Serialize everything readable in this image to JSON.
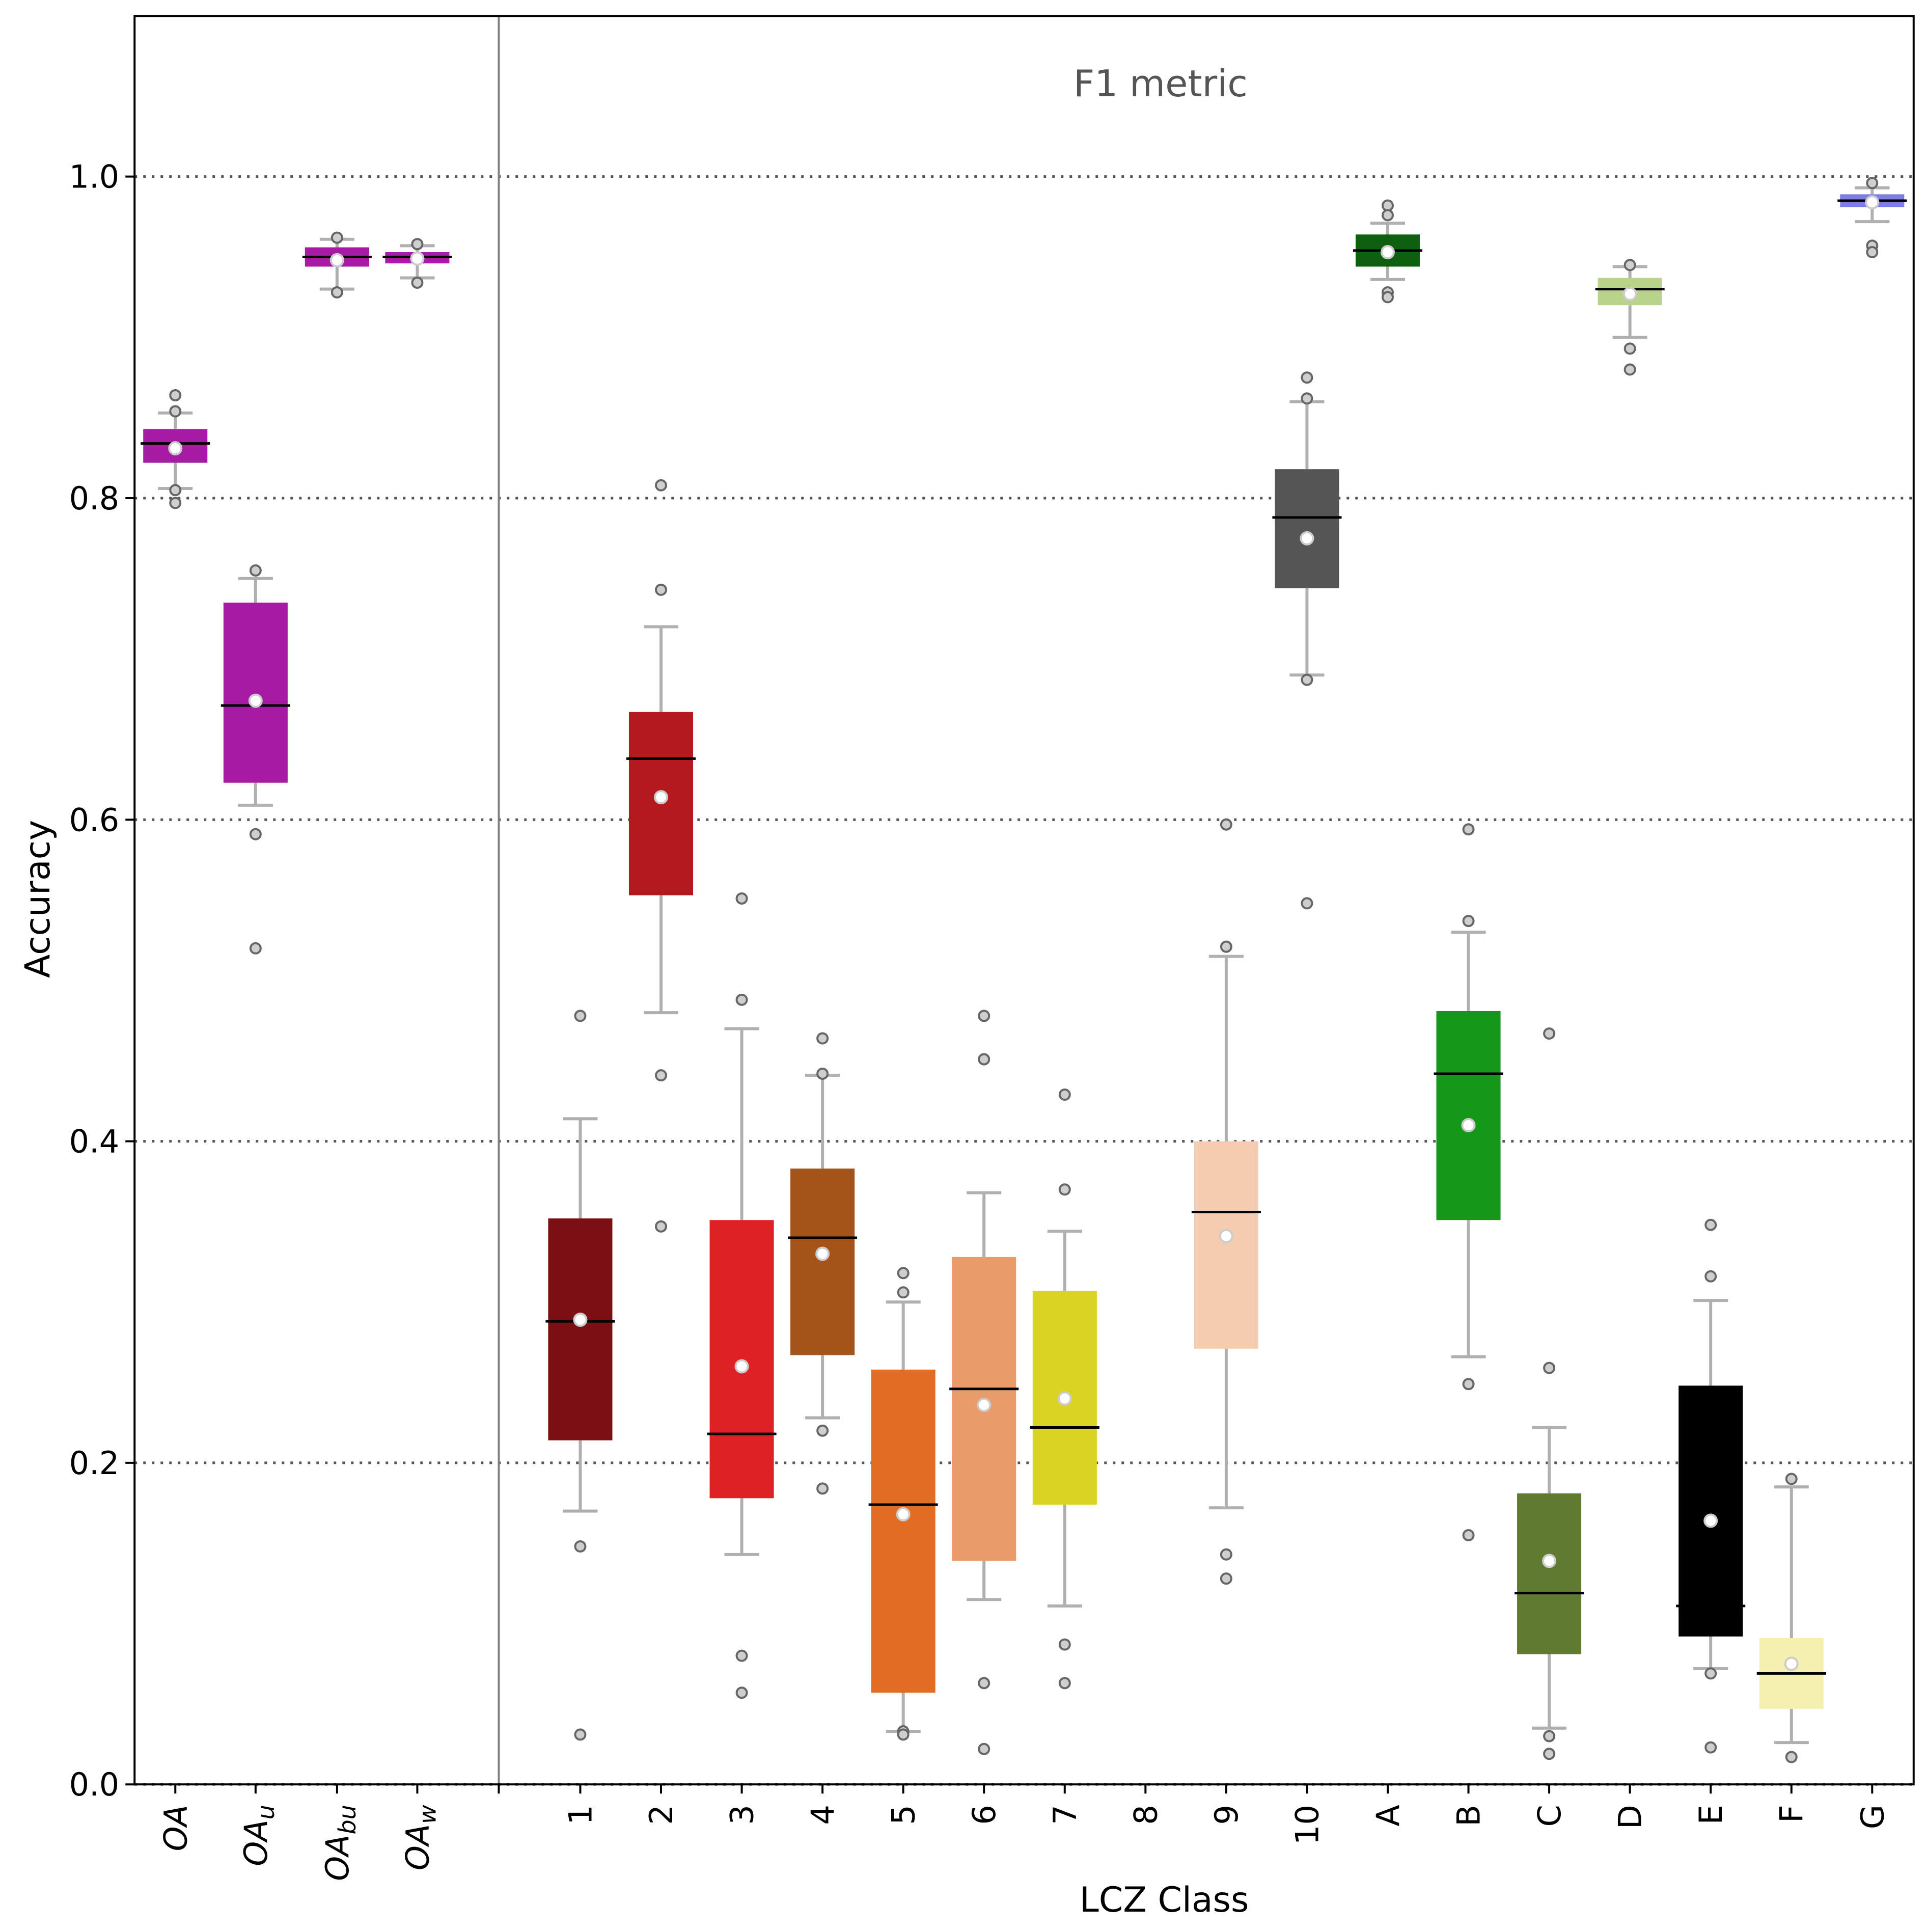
{
  "chart_data": {
    "type": "box",
    "title": "F1 metric",
    "xlabel": "LCZ Class",
    "ylabel": "Accuracy",
    "ylim": [
      0.0,
      1.1
    ],
    "yticks": [
      "0.0",
      "0.2",
      "0.4",
      "0.6",
      "0.8",
      "1.0"
    ],
    "ytick_values": [
      0.0,
      0.2,
      0.4,
      0.6,
      0.8,
      1.0
    ],
    "grid": "horizontal dotted",
    "left_group": [
      {
        "label": "OA",
        "base": "OA",
        "sub": "",
        "color": "#a61aa6",
        "q1": 0.822,
        "median": 0.834,
        "q3": 0.843,
        "whislo": 0.806,
        "whishi": 0.853,
        "mean": 0.831,
        "fliers": [
          0.864,
          0.854,
          0.805,
          0.797
        ]
      },
      {
        "label": "OA_u",
        "base": "OA",
        "sub": "u",
        "color": "#a61aa6",
        "q1": 0.623,
        "median": 0.671,
        "q3": 0.735,
        "whislo": 0.609,
        "whishi": 0.75,
        "mean": 0.674,
        "fliers": [
          0.755,
          0.591,
          0.52
        ]
      },
      {
        "label": "OA_bu",
        "base": "OA",
        "sub": "bu",
        "color": "#a61aa6",
        "q1": 0.944,
        "median": 0.95,
        "q3": 0.956,
        "whislo": 0.93,
        "whishi": 0.961,
        "mean": 0.948,
        "fliers": [
          0.962,
          0.928
        ]
      },
      {
        "label": "OA_w",
        "base": "OA",
        "sub": "w",
        "color": "#a61aa6",
        "q1": 0.946,
        "median": 0.95,
        "q3": 0.953,
        "whislo": 0.937,
        "whishi": 0.957,
        "mean": 0.949,
        "fliers": [
          0.958,
          0.934
        ]
      }
    ],
    "right_group": [
      {
        "label": "1",
        "color": "#7b1013",
        "q1": 0.214,
        "median": 0.288,
        "q3": 0.352,
        "whislo": 0.17,
        "whishi": 0.414,
        "mean": 0.289,
        "fliers": [
          0.478,
          0.148,
          0.031
        ]
      },
      {
        "label": "2",
        "color": "#b4191d",
        "q1": 0.553,
        "median": 0.638,
        "q3": 0.667,
        "whislo": 0.48,
        "whishi": 0.72,
        "mean": 0.614,
        "fliers": [
          0.808,
          0.743,
          0.441,
          0.347
        ]
      },
      {
        "label": "3",
        "color": "#de2124",
        "q1": 0.178,
        "median": 0.218,
        "q3": 0.351,
        "whislo": 0.143,
        "whishi": 0.47,
        "mean": 0.26,
        "fliers": [
          0.551,
          0.488,
          0.08,
          0.057
        ]
      },
      {
        "label": "4",
        "color": "#a5521b",
        "q1": 0.267,
        "median": 0.34,
        "q3": 0.383,
        "whislo": 0.228,
        "whishi": 0.441,
        "mean": 0.33,
        "fliers": [
          0.464,
          0.442,
          0.22,
          0.184
        ]
      },
      {
        "label": "5",
        "color": "#e06d22",
        "q1": 0.057,
        "median": 0.174,
        "q3": 0.258,
        "whislo": 0.033,
        "whishi": 0.3,
        "mean": 0.168,
        "fliers": [
          0.318,
          0.306,
          0.033,
          0.031
        ]
      },
      {
        "label": "6",
        "color": "#e99c69",
        "q1": 0.139,
        "median": 0.246,
        "q3": 0.328,
        "whislo": 0.115,
        "whishi": 0.368,
        "mean": 0.236,
        "fliers": [
          0.478,
          0.451,
          0.063,
          0.022
        ]
      },
      {
        "label": "7",
        "color": "#dad321",
        "q1": 0.174,
        "median": 0.222,
        "q3": 0.307,
        "whislo": 0.111,
        "whishi": 0.344,
        "mean": 0.24,
        "fliers": [
          0.429,
          0.37,
          0.087,
          0.063
        ]
      },
      {
        "label": "8",
        "color": "#bcbcbc",
        "q1": null,
        "median": null,
        "q3": null,
        "whislo": null,
        "whishi": null,
        "mean": null,
        "fliers": []
      },
      {
        "label": "9",
        "color": "#f5ccb0",
        "q1": 0.271,
        "median": 0.356,
        "q3": 0.4,
        "whislo": 0.172,
        "whishi": 0.515,
        "mean": 0.341,
        "fliers": [
          0.597,
          0.521,
          0.143,
          0.128
        ]
      },
      {
        "label": "10",
        "color": "#555555",
        "q1": 0.744,
        "median": 0.788,
        "q3": 0.818,
        "whislo": 0.69,
        "whishi": 0.86,
        "mean": 0.775,
        "fliers": [
          0.875,
          0.862,
          0.687,
          0.548
        ]
      },
      {
        "label": "A",
        "color": "#0c600f",
        "q1": 0.944,
        "median": 0.954,
        "q3": 0.964,
        "whislo": 0.936,
        "whishi": 0.971,
        "mean": 0.953,
        "fliers": [
          0.982,
          0.976,
          0.928,
          0.925
        ]
      },
      {
        "label": "B",
        "color": "#15971a",
        "q1": 0.351,
        "median": 0.442,
        "q3": 0.481,
        "whislo": 0.266,
        "whishi": 0.53,
        "mean": 0.41,
        "fliers": [
          0.594,
          0.537,
          0.249,
          0.155
        ]
      },
      {
        "label": "C",
        "color": "#617a32",
        "q1": 0.081,
        "median": 0.119,
        "q3": 0.181,
        "whislo": 0.035,
        "whishi": 0.222,
        "mean": 0.139,
        "fliers": [
          0.467,
          0.259,
          0.03,
          0.019
        ]
      },
      {
        "label": "D",
        "color": "#b9d38a",
        "q1": 0.92,
        "median": 0.93,
        "q3": 0.937,
        "whislo": 0.9,
        "whishi": 0.944,
        "mean": 0.927,
        "fliers": [
          0.945,
          0.893,
          0.88
        ]
      },
      {
        "label": "E",
        "color": "#000000",
        "q1": 0.092,
        "median": 0.111,
        "q3": 0.248,
        "whislo": 0.072,
        "whishi": 0.301,
        "mean": 0.164,
        "fliers": [
          0.348,
          0.316,
          0.069,
          0.023
        ]
      },
      {
        "label": "F",
        "color": "#f5f0b0",
        "q1": 0.047,
        "median": 0.069,
        "q3": 0.091,
        "whislo": 0.026,
        "whishi": 0.185,
        "mean": 0.075,
        "fliers": [
          0.19,
          0.017
        ]
      },
      {
        "label": "G",
        "color": "#7d7de6",
        "q1": 0.981,
        "median": 0.985,
        "q3": 0.989,
        "whislo": 0.972,
        "whishi": 0.993,
        "mean": 0.984,
        "fliers": [
          0.996,
          0.957,
          0.953
        ]
      }
    ]
  }
}
